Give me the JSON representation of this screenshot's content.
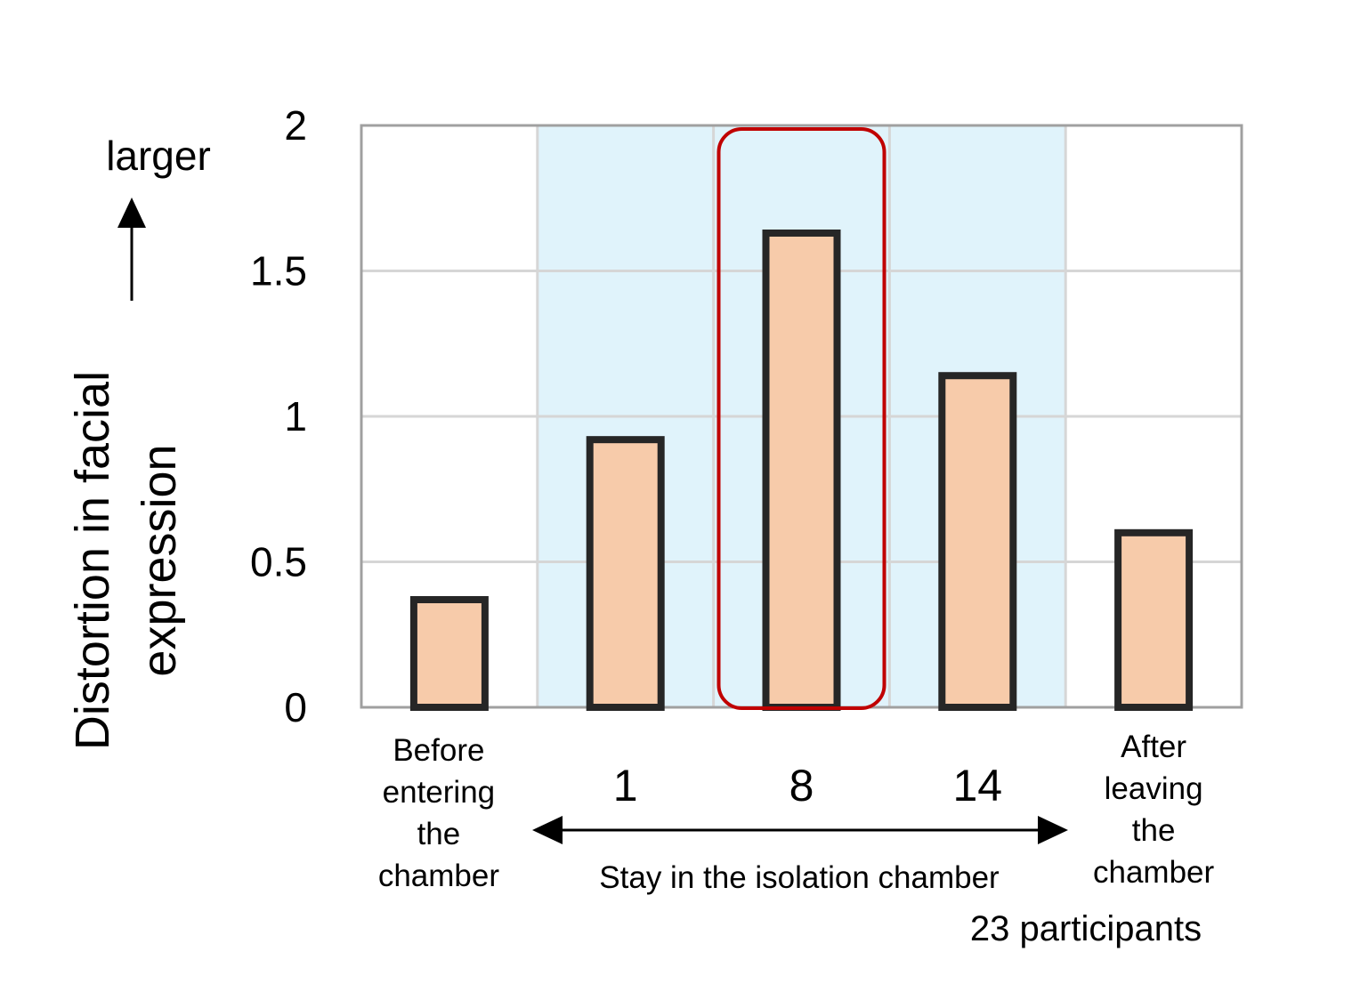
{
  "chart_data": {
    "type": "bar",
    "categories": [
      [
        "Before",
        "entering",
        "the",
        "chamber"
      ],
      [
        "1"
      ],
      [
        "8"
      ],
      [
        "14"
      ],
      [
        "After",
        "leaving",
        "the",
        "chamber"
      ]
    ],
    "values": [
      0.37,
      0.92,
      1.63,
      1.14,
      0.6
    ],
    "ylabel": [
      "Distortion in facial",
      "expression"
    ],
    "ylim": [
      0,
      2
    ],
    "yticks": [
      "0",
      "0.5",
      "1",
      "1.5",
      "2"
    ],
    "grid": true,
    "highlight_band": {
      "from_category": 1,
      "to_category": 3
    },
    "highlight_bar": 2,
    "direction_label": "larger",
    "span_label": "Stay in the isolation chamber",
    "note": "23 participants",
    "colors": {
      "bar_fill": "#f7cbaa",
      "bar_stroke": "#262626",
      "band": "#e0f3fb",
      "grid": "#d6d6d6",
      "axis": "#a0a0a0",
      "highlight": "#c00000"
    }
  }
}
